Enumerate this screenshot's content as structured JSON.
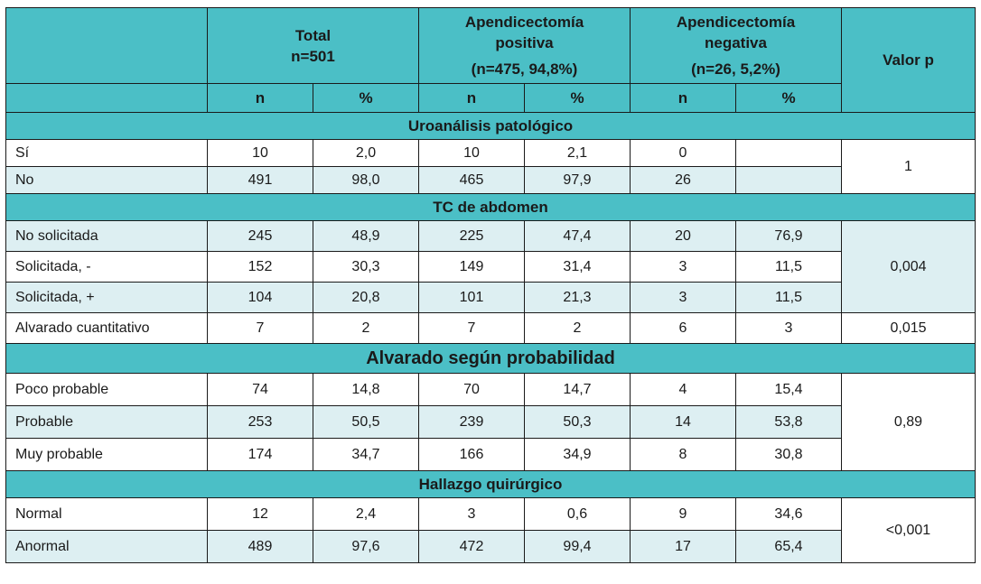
{
  "header": {
    "total": {
      "line1": "Total",
      "line2": "n=501"
    },
    "positive": {
      "line1": "Apendicectomía",
      "line2": "positiva",
      "line3": "(n=475, 94,8%)"
    },
    "negative": {
      "line1": "Apendicectomía",
      "line2": "negativa",
      "line3": "(n=26, 5,2%)"
    },
    "pvalue": "Valor p",
    "sub_n": "n",
    "sub_pct": "%"
  },
  "sections": {
    "uro": "Uroanálisis patológico",
    "tc": "TC de abdomen",
    "alvarado": "Alvarado según probabilidad",
    "hallazgo": "Hallazgo quirúrgico"
  },
  "rows": {
    "si": {
      "label": "Sí",
      "cells": [
        "10",
        "2,0",
        "10",
        "2,1",
        "0",
        ""
      ]
    },
    "no": {
      "label": "No",
      "cells": [
        "491",
        "98,0",
        "465",
        "97,9",
        "26",
        ""
      ]
    },
    "no_sol": {
      "label": "No solicitada",
      "cells": [
        "245",
        "48,9",
        "225",
        "47,4",
        "20",
        "76,9"
      ]
    },
    "sol_neg": {
      "label": "Solicitada, -",
      "cells": [
        "152",
        "30,3",
        "149",
        "31,4",
        "3",
        "11,5"
      ]
    },
    "sol_pos": {
      "label": "Solicitada, +",
      "cells": [
        "104",
        "20,8",
        "101",
        "21,3",
        "3",
        "11,5"
      ]
    },
    "alv_cuant": {
      "label": "Alvarado cuantitativo",
      "cells": [
        "7",
        "2",
        "7",
        "2",
        "6",
        "3"
      ],
      "p": "0,015"
    },
    "poco": {
      "label": "Poco probable",
      "cells": [
        "74",
        "14,8",
        "70",
        "14,7",
        "4",
        "15,4"
      ]
    },
    "prob": {
      "label": "Probable",
      "cells": [
        "253",
        "50,5",
        "239",
        "50,3",
        "14",
        "53,8"
      ]
    },
    "muy": {
      "label": "Muy probable",
      "cells": [
        "174",
        "34,7",
        "166",
        "34,9",
        "8",
        "30,8"
      ]
    },
    "normal": {
      "label": "Normal",
      "cells": [
        "12",
        "2,4",
        "3",
        "0,6",
        "9",
        "34,6"
      ]
    },
    "anormal": {
      "label": "Anormal",
      "cells": [
        "489",
        "97,6",
        "472",
        "99,4",
        "17",
        "65,4"
      ]
    }
  },
  "pvalues": {
    "uro": "1",
    "tc": "0,004",
    "alvarado": "0,89",
    "hallazgo": "<0,001"
  }
}
